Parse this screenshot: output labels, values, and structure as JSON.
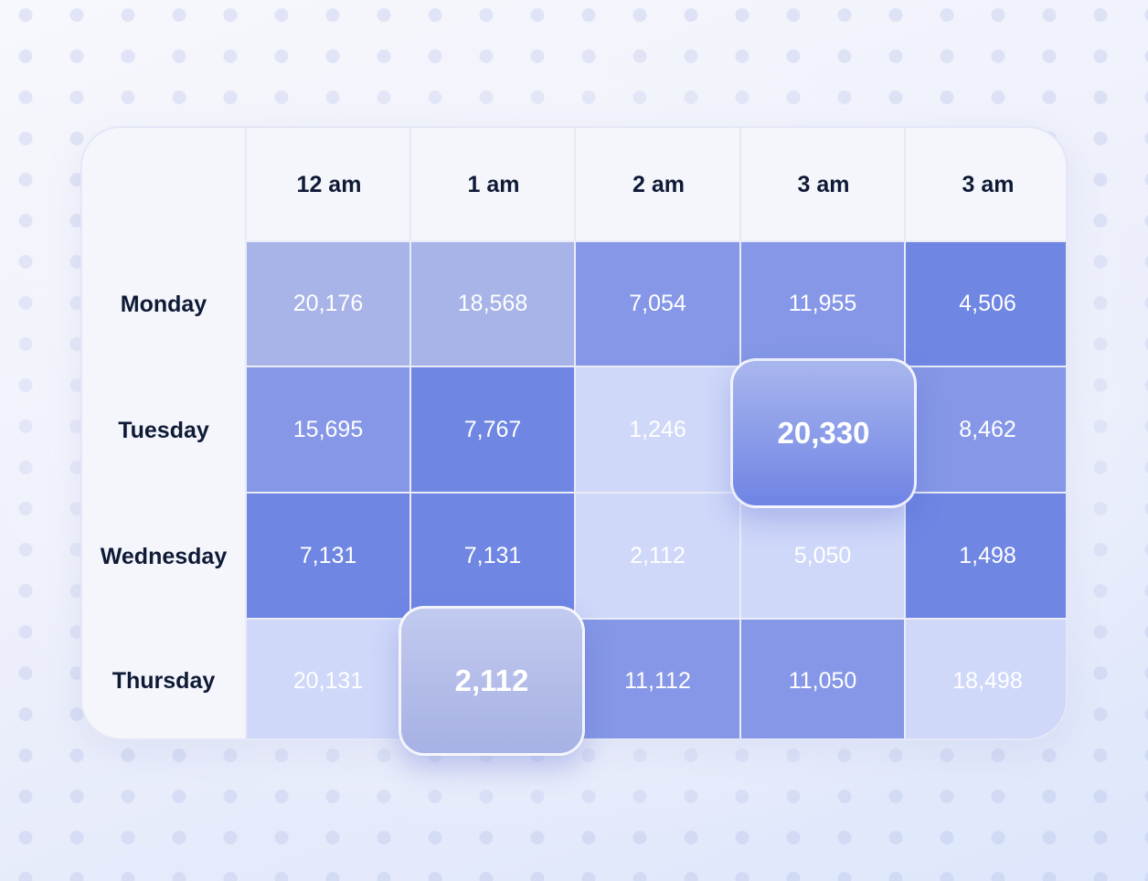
{
  "chart_data": {
    "type": "heatmap",
    "columns": [
      "12 am",
      "1 am",
      "2 am",
      "3 am",
      "3 am"
    ],
    "rows": [
      "Monday",
      "Tuesday",
      "Wednesday",
      "Thursday"
    ],
    "values": [
      [
        "20,176",
        "18,568",
        "7,054",
        "11,955",
        "4,506"
      ],
      [
        "15,695",
        "7,767",
        "1,246",
        "20,330",
        "8,462"
      ],
      [
        "7,131",
        "7,131",
        "2,112",
        "5,050",
        "1,498"
      ],
      [
        "20,131",
        "2,112",
        "11,112",
        "11,050",
        "18,498"
      ]
    ],
    "cell_colors": [
      [
        "#a8b3e7",
        "#a8b3e7",
        "#8597e6",
        "#8597e6",
        "#6f86e3"
      ],
      [
        "#8597e6",
        "#6f86e3",
        "#cfd8f9",
        "#a8b7ef",
        "#8597e6"
      ],
      [
        "#6f86e3",
        "#6f86e3",
        "#cfd8f9",
        "#cfd8f9",
        "#6f86e3"
      ],
      [
        "#cfd8f9",
        "#aab5e6",
        "#8597e6",
        "#8597e6",
        "#cfd8f9"
      ]
    ],
    "highlighted": [
      {
        "row": 1,
        "col": 3,
        "value": "20,330"
      },
      {
        "row": 3,
        "col": 1,
        "value": "2,112"
      }
    ]
  }
}
